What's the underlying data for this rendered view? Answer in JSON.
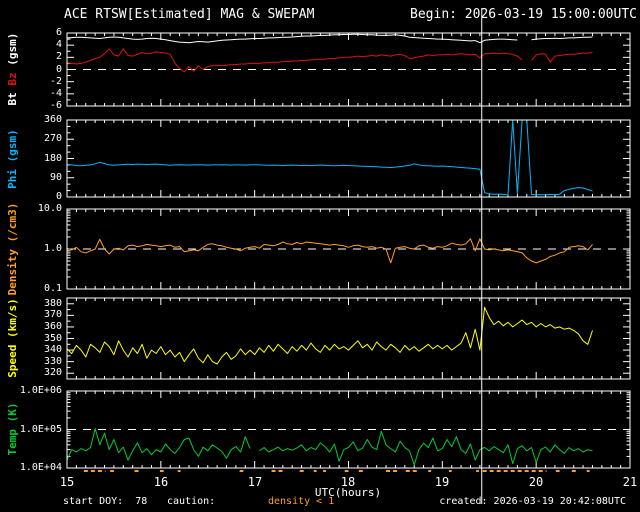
{
  "header": {
    "title": "ACE RTSW[Estimated] MAG & SWEPAM",
    "begin_label": "Begin: 2026-03-19 15:00:00UTC"
  },
  "colors": {
    "background": "#000000",
    "frame": "#ffffff",
    "bt": "#ffffff",
    "bz": "#dd1111",
    "phi": "#00b7ff",
    "density": "#ff9e2a",
    "speed": "#ffff00",
    "temp": "#00cc33"
  },
  "xaxis": {
    "label": "UTC(hours)",
    "range": [
      15,
      21
    ],
    "ticks": [
      "15",
      "16",
      "17",
      "18",
      "19",
      "20",
      "21"
    ]
  },
  "panels_meta": {
    "p1": {
      "bt": "Bt",
      "bz": "Bz",
      "unit": "(gsm)"
    },
    "p2": {
      "label": "Phi (gsm)"
    },
    "p3": {
      "label": "Density (/cm3)"
    },
    "p4": {
      "label": "Speed (km/s)"
    },
    "p5": {
      "label": "Temp (K)"
    }
  },
  "footer": {
    "start_doy": "start DOY:  78",
    "caution": "caution:",
    "caution_value": "density < 1",
    "created": "created: 2026-03-19 20:42:08UTC"
  },
  "marker": {
    "utc": 19.42
  },
  "caution_segments": [
    [
      15.18,
      15.41
    ],
    [
      15.46,
      15.5
    ],
    [
      15.72,
      15.78
    ],
    [
      15.99,
      16.03
    ],
    [
      16.18,
      16.21
    ],
    [
      16.84,
      16.88
    ],
    [
      17.18,
      17.32
    ],
    [
      17.48,
      17.53
    ],
    [
      17.63,
      17.66
    ],
    [
      17.73,
      17.76
    ],
    [
      17.96,
      18.0
    ],
    [
      18.11,
      18.16
    ],
    [
      18.4,
      18.52
    ],
    [
      18.61,
      18.73
    ],
    [
      18.85,
      18.88
    ],
    [
      19.07,
      19.1
    ],
    [
      19.36,
      19.39
    ],
    [
      19.43,
      20.11
    ],
    [
      20.21,
      20.25
    ],
    [
      20.38,
      20.44
    ],
    [
      20.54,
      20.57
    ]
  ],
  "chart_data": [
    {
      "id": "bt_bz",
      "type": "line",
      "yscale": "linear",
      "ylabel": "Bt Bz (gsm)",
      "ylim": [
        -6,
        6
      ],
      "yticks": [
        6,
        4,
        2,
        0,
        -2,
        -4,
        -6
      ],
      "ytick_labels": [
        "6",
        "4",
        "2",
        "0",
        "-2",
        "-4",
        "-6"
      ],
      "yminor": 1,
      "dashed_at": 0,
      "series": [
        {
          "name": "Bt",
          "color": "#ffffff",
          "t0": 15,
          "dt": 0.05,
          "values": [
            5.2,
            5.25,
            5.3,
            5.3,
            5.25,
            5.2,
            5.15,
            5.1,
            5.2,
            5.3,
            5.35,
            5.3,
            5.2,
            5.1,
            5.0,
            4.95,
            5.0,
            5.1,
            5.15,
            5.1,
            5.0,
            4.9,
            4.75,
            4.6,
            4.5,
            4.45,
            4.4,
            4.5,
            4.6,
            4.55,
            4.5,
            4.6,
            4.7,
            4.8,
            4.85,
            4.9,
            4.95,
            5.0,
            5.0,
            5.05,
            5.1,
            5.1,
            5.15,
            5.2,
            5.2,
            5.25,
            5.3,
            5.3,
            5.35,
            5.4,
            5.45,
            5.5,
            5.5,
            5.55,
            5.6,
            5.6,
            5.65,
            5.7,
            5.7,
            5.75,
            5.75,
            5.8,
            5.8,
            5.75,
            5.7,
            5.7,
            5.65,
            5.6,
            5.6,
            5.65,
            5.7,
            5.6,
            5.5,
            5.3,
            5.25,
            5.2,
            5.15,
            5.1,
            5.05,
            5.0,
            5.0,
            4.95,
            4.9,
            4.85,
            4.8,
            4.75,
            4.7,
            4.75,
            4.4,
            4.8,
            4.9,
            4.95,
            5.0,
            5.0,
            4.95,
            4.9,
            4.85,
            null,
            null,
            4.9,
            5.0,
            5.05,
            5.1,
            5.1,
            5.15,
            5.1,
            5.15,
            5.2,
            5.2,
            5.25,
            5.3,
            5.3,
            5.35
          ]
        },
        {
          "name": "Bz",
          "color": "#dd1111",
          "t0": 15,
          "dt": 0.05,
          "values": [
            1.1,
            1.0,
            0.9,
            1.0,
            1.2,
            1.5,
            1.8,
            2.0,
            2.6,
            3.4,
            2.4,
            2.2,
            3.4,
            2.3,
            2.2,
            2.5,
            2.8,
            2.6,
            2.7,
            2.9,
            2.8,
            2.7,
            2.5,
            1.0,
            0.2,
            -0.4,
            0.5,
            -0.3,
            0.6,
            0.0,
            0.5,
            0.6,
            0.7,
            0.6,
            0.7,
            0.8,
            0.8,
            0.9,
            0.9,
            1.0,
            1.0,
            1.0,
            1.1,
            1.1,
            1.2,
            1.2,
            1.3,
            1.3,
            1.4,
            1.4,
            1.5,
            1.5,
            1.6,
            1.6,
            1.7,
            1.7,
            1.8,
            1.8,
            1.9,
            2.0,
            2.0,
            2.1,
            2.2,
            2.1,
            2.2,
            2.3,
            2.2,
            2.4,
            2.3,
            2.2,
            2.4,
            2.5,
            2.3,
            1.8,
            1.9,
            2.1,
            2.2,
            2.4,
            2.3,
            2.4,
            2.4,
            2.5,
            2.4,
            2.5,
            2.6,
            2.5,
            2.4,
            2.5,
            1.9,
            2.6,
            2.6,
            2.7,
            2.6,
            2.7,
            2.6,
            2.5,
            2.2,
            1.6,
            null,
            1.5,
            2.4,
            2.6,
            2.5,
            1.2,
            2.2,
            2.3,
            2.4,
            2.5,
            2.5,
            2.6,
            2.7,
            2.7,
            2.8
          ]
        }
      ]
    },
    {
      "id": "phi",
      "type": "line",
      "yscale": "linear",
      "ylabel": "Phi (gsm)",
      "ylim": [
        0,
        360
      ],
      "yticks": [
        360,
        270,
        180,
        90,
        0
      ],
      "ytick_labels": [
        "360",
        "270",
        "180",
        "90",
        "0"
      ],
      "yminor": 30,
      "dashed_at": null,
      "series": [
        {
          "name": "Phi",
          "color": "#00b7ff",
          "t0": 15,
          "dt": 0.05,
          "values": [
            152,
            150,
            147,
            146,
            148,
            150,
            155,
            162,
            156,
            150,
            148,
            150,
            152,
            153,
            152,
            154,
            153,
            152,
            153,
            154,
            152,
            150,
            148,
            150,
            151,
            150,
            149,
            150,
            151,
            150,
            149,
            150,
            150,
            151,
            150,
            149,
            150,
            150,
            149,
            150,
            151,
            150,
            149,
            148,
            149,
            148,
            147,
            148,
            149,
            148,
            147,
            148,
            147,
            148,
            149,
            148,
            147,
            146,
            147,
            148,
            147,
            146,
            145,
            144,
            143,
            142,
            141,
            140,
            139,
            138,
            140,
            142,
            145,
            148,
            155,
            150,
            147,
            146,
            145,
            144,
            145,
            143,
            142,
            140,
            138,
            136,
            135,
            133,
            130,
            20,
            15,
            12,
            14,
            12,
            10,
            360,
            15,
            360,
            360,
            12,
            10,
            11,
            10,
            12,
            11,
            13,
            30,
            36,
            40,
            44,
            42,
            35,
            28
          ]
        }
      ]
    },
    {
      "id": "density",
      "type": "line",
      "yscale": "log",
      "ylabel": "Density (/cm3)",
      "ylim": [
        0.1,
        10
      ],
      "yticks": [
        10,
        1,
        0.1
      ],
      "ytick_labels": [
        "10.0",
        "1.0",
        "0.1"
      ],
      "dashed_at": 1,
      "series": [
        {
          "name": "Density",
          "color": "#ff9e2a",
          "t0": 15,
          "dt": 0.05,
          "values": [
            1.05,
            0.95,
            1.1,
            0.85,
            0.8,
            0.9,
            1.0,
            1.75,
            1.0,
            0.75,
            1.0,
            1.05,
            0.95,
            1.2,
            1.25,
            1.15,
            1.2,
            1.3,
            1.25,
            1.2,
            1.15,
            1.2,
            1.25,
            1.1,
            1.15,
            0.85,
            0.9,
            0.95,
            0.9,
            1.1,
            1.3,
            1.35,
            1.25,
            1.2,
            1.1,
            1.05,
            1.0,
            0.9,
            1.05,
            1.1,
            1.15,
            1.05,
            1.3,
            1.25,
            1.2,
            1.3,
            1.5,
            1.35,
            1.3,
            1.45,
            1.35,
            1.5,
            1.45,
            1.4,
            1.35,
            1.3,
            1.25,
            1.3,
            1.25,
            1.2,
            1.1,
            1.2,
            1.25,
            1.15,
            1.1,
            1.15,
            1.05,
            1.1,
            1.0,
            0.45,
            1.05,
            1.1,
            1.15,
            1.05,
            1.0,
            1.2,
            1.25,
            1.1,
            1.05,
            1.15,
            1.1,
            1.2,
            1.4,
            1.3,
            1.25,
            1.35,
            1.8,
            0.9,
            1.8,
            1.0,
            0.95,
            1.0,
            0.95,
            0.9,
            0.95,
            0.9,
            0.85,
            0.8,
            0.6,
            0.5,
            0.45,
            0.5,
            0.55,
            0.65,
            0.7,
            0.8,
            0.85,
            1.1,
            1.15,
            1.2,
            1.15,
            0.95,
            1.3
          ]
        }
      ]
    },
    {
      "id": "speed",
      "type": "line",
      "yscale": "linear",
      "ylabel": "Speed (km/s)",
      "ylim": [
        315,
        385
      ],
      "yticks": [
        380,
        370,
        360,
        350,
        340,
        330,
        320
      ],
      "ytick_labels": [
        "380",
        "370",
        "360",
        "350",
        "340",
        "330",
        "320"
      ],
      "yminor": 5,
      "dashed_at": null,
      "series": [
        {
          "name": "Speed",
          "color": "#ffff00",
          "t0": 15,
          "dt": 0.05,
          "values": [
            341,
            337,
            344,
            340,
            334,
            345,
            342,
            338,
            347,
            343,
            336,
            348,
            340,
            334,
            342,
            337,
            345,
            333,
            340,
            337,
            343,
            336,
            340,
            334,
            338,
            330,
            336,
            341,
            333,
            329,
            336,
            330,
            328,
            334,
            338,
            332,
            335,
            341,
            336,
            340,
            336,
            342,
            338,
            344,
            339,
            345,
            341,
            337,
            343,
            339,
            344,
            340,
            346,
            341,
            338,
            344,
            340,
            345,
            341,
            343,
            340,
            344,
            348,
            342,
            345,
            340,
            347,
            343,
            340,
            345,
            342,
            338,
            344,
            340,
            343,
            339,
            342,
            345,
            341,
            344,
            341,
            344,
            340,
            343,
            346,
            355,
            342,
            358,
            340,
            377,
            368,
            362,
            365,
            361,
            364,
            360,
            363,
            366,
            362,
            364,
            360,
            363,
            360,
            362,
            359,
            360,
            358,
            359,
            357,
            354,
            348,
            345,
            357
          ]
        }
      ]
    },
    {
      "id": "temp",
      "type": "line",
      "yscale": "log",
      "ylabel": "Temp (K)",
      "ylim": [
        10000.0,
        1000000.0
      ],
      "yticks": [
        1000000.0,
        100000.0,
        10000.0
      ],
      "ytick_labels": [
        "1.0E+06",
        "1.0E+05",
        "1.0E+04"
      ],
      "dashed_at": 100000.0,
      "series": [
        {
          "name": "Temp",
          "color": "#00cc33",
          "t0": 15,
          "dt": 0.05,
          "values": [
            16000.0,
            30000.0,
            26000.0,
            32000.0,
            28000.0,
            34000.0,
            105000.0,
            40000.0,
            80000.0,
            30000.0,
            55000.0,
            25000.0,
            35000.0,
            16000.0,
            28000.0,
            45000.0,
            25000.0,
            32000.0,
            22000.0,
            30000.0,
            26000.0,
            42000.0,
            30000.0,
            24000.0,
            34000.0,
            55000.0,
            60000.0,
            30000.0,
            20000.0,
            35000.0,
            28000.0,
            40000.0,
            33000.0,
            27000.0,
            18000.0,
            30000.0,
            36000.0,
            26000.0,
            65000.0,
            32000.0,
            null,
            28000.0,
            34000.0,
            26000.0,
            30000.0,
            35000.0,
            28000.0,
            32000.0,
            29000.0,
            33000.0,
            40000.0,
            28000.0,
            34000.0,
            30000.0,
            45000.0,
            36000.0,
            26000.0,
            42000.0,
            15000.0,
            30000.0,
            34000.0,
            48000.0,
            28000.0,
            33000.0,
            55000.0,
            35000.0,
            30000.0,
            90000.0,
            40000.0,
            32000.0,
            26000.0,
            50000.0,
            34000.0,
            28000.0,
            12000.0,
            30000.0,
            44000.0,
            34000.0,
            60000.0,
            28000.0,
            32000.0,
            55000.0,
            36000.0,
            65000.0,
            30000.0,
            24000.0,
            42000.0,
            16000.0,
            30000.0,
            34000.0,
            28000.0,
            36000.0,
            30000.0,
            25000.0,
            40000.0,
            13000.0,
            32000.0,
            38000.0,
            28000.0,
            34000.0,
            14000.0,
            30000.0,
            35000.0,
            26000.0,
            40000.0,
            30000.0,
            24000.0,
            34000.0,
            28000.0,
            32000.0,
            26000.0,
            30000.0,
            28000.0
          ]
        }
      ]
    }
  ]
}
